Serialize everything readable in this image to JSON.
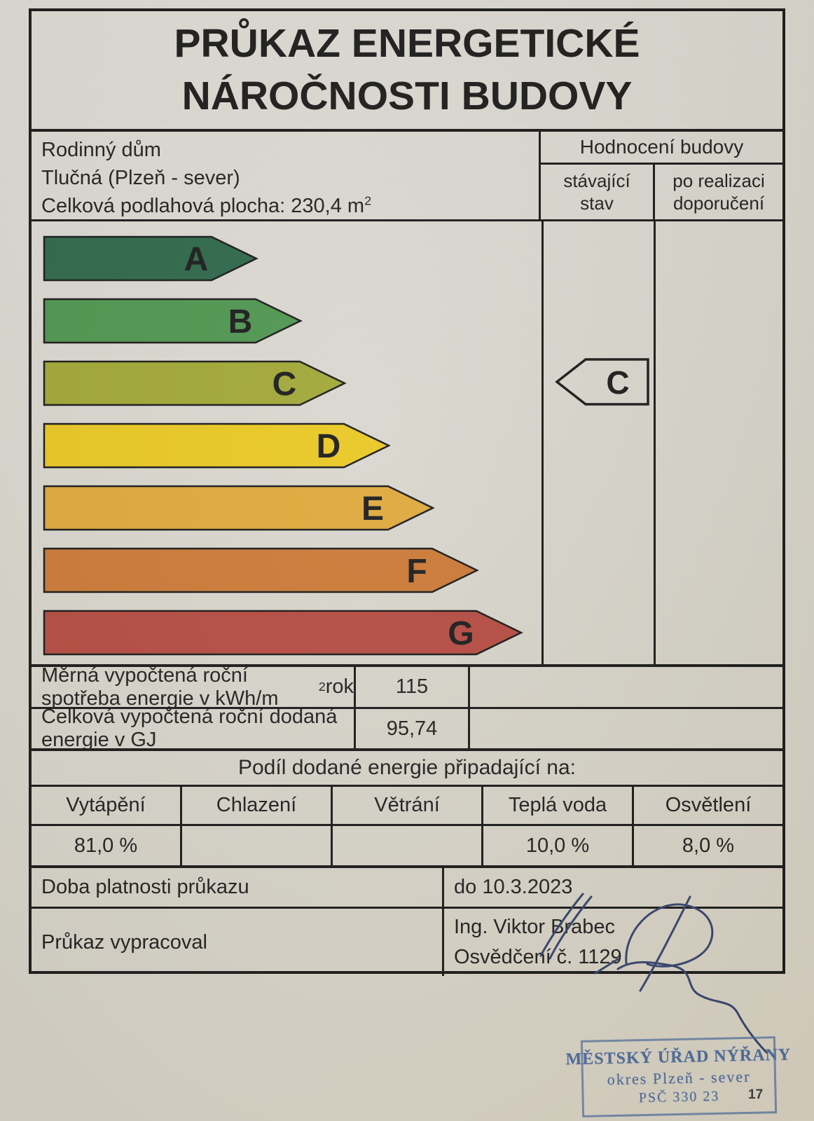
{
  "title": {
    "line1": "PRŮKAZ ENERGETICKÉ",
    "line2": "NÁROČNOSTI BUDOVY"
  },
  "building": {
    "type": "Rodinný dům",
    "location": "Tlučná (Plzeň - sever)",
    "floor_area_pre": "Celková podlahová plocha: 230,4 m",
    "floor_area_sup": "2"
  },
  "assessment": {
    "header": "Hodnocení budovy",
    "col_current_l1": "stávající",
    "col_current_l2": "stav",
    "col_recommended_l1": "po realizaci",
    "col_recommended_l2": "doporučení"
  },
  "rating_scale": {
    "current": "C",
    "classes": [
      {
        "label": "A",
        "color": "#2e684a",
        "tip": 321
      },
      {
        "label": "B",
        "color": "#4f9651",
        "tip": 384
      },
      {
        "label": "C",
        "color": "#a1a837",
        "tip": 447
      },
      {
        "label": "D",
        "color": "#e9c824",
        "tip": 510
      },
      {
        "label": "E",
        "color": "#dfa93c",
        "tip": 573
      },
      {
        "label": "F",
        "color": "#cc7a38",
        "tip": 636
      },
      {
        "label": "G",
        "color": "#b54c43",
        "tip": 699
      }
    ]
  },
  "metrics": [
    {
      "label_pre": "Měrná vypočtená roční spotřeba energie v kWh/m",
      "label_sup": "2",
      "label_post": "rok",
      "current": "115",
      "recommended": ""
    },
    {
      "label_pre": "Celková vypočtená roční dodaná energie v GJ",
      "label_sup": "",
      "label_post": "",
      "current": "95,74",
      "recommended": ""
    }
  ],
  "energy_share": {
    "header": "Podíl dodané energie připadající na:",
    "columns": [
      "Vytápění",
      "Chlazení",
      "Větrání",
      "Teplá voda",
      "Osvětlení"
    ],
    "values": [
      "81,0 %",
      "",
      "",
      "10,0 %",
      "8,0 %"
    ]
  },
  "validity": {
    "label": "Doba platnosti průkazu",
    "value": "do 10.3.2023"
  },
  "author": {
    "label": "Průkaz vypracoval",
    "name": "Ing. Viktor Brabec",
    "certificate": "Osvědčení č. 1129"
  },
  "stamp": {
    "line1": "MĚSTSKÝ ÚŘAD NÝŘANY",
    "line2": "okres Plzeň - sever",
    "line3": "PSČ 330 23",
    "ink_color": "#4e6d9d"
  },
  "page_number": "17",
  "signature_ink_color": "#36466e",
  "line_color": "#1b1b1b"
}
